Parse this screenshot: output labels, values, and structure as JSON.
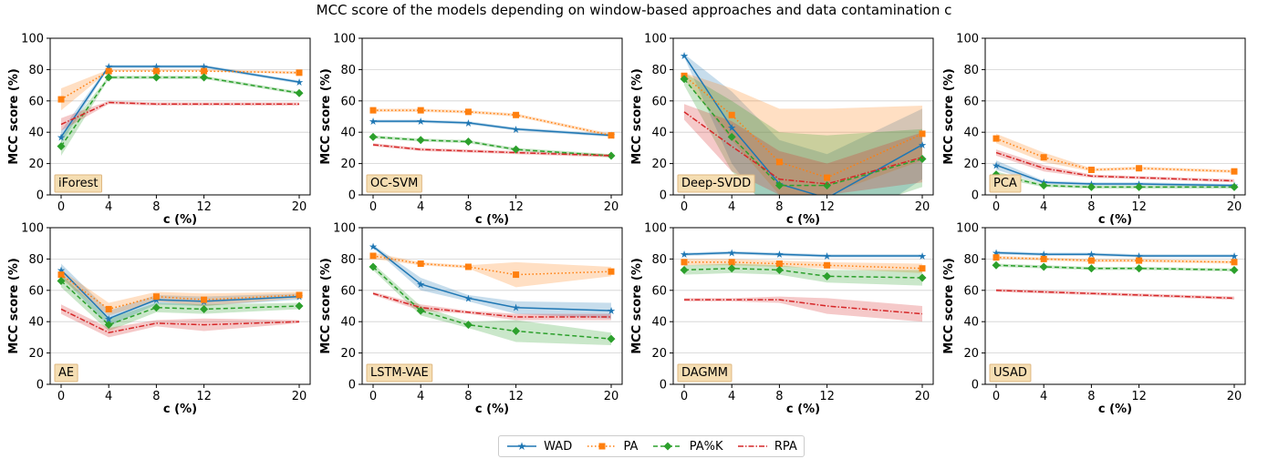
{
  "title": "MCC score of the models depending on window-based approaches and data contamination c",
  "colors": {
    "WAD": "#1f77b4",
    "PA": "#ff7f0e",
    "PA%K": "#2ca02c",
    "RPA": "#d62728",
    "label_bg": "#f5deb3",
    "label_border": "#e0b882"
  },
  "legend": {
    "entries": [
      "WAD",
      "PA",
      "PA%K",
      "RPA"
    ]
  },
  "chart_data": [
    {
      "type": "line",
      "title": "iForest",
      "xlabel": "c (%)",
      "ylabel": "MCC score (%)",
      "ylim": [
        0,
        100
      ],
      "x": [
        0,
        4,
        8,
        12,
        20
      ],
      "yticks": [
        0,
        20,
        40,
        60,
        80,
        100
      ],
      "grid": true,
      "series": [
        {
          "name": "WAD",
          "values": [
            37,
            82,
            82,
            82,
            72
          ],
          "lower": [
            33,
            81,
            81,
            81,
            71
          ],
          "upper": [
            41,
            83,
            83,
            83,
            73
          ]
        },
        {
          "name": "PA",
          "values": [
            61,
            79,
            79,
            79,
            78
          ],
          "lower": [
            54,
            79,
            79,
            79,
            77
          ],
          "upper": [
            68,
            80,
            80,
            80,
            79
          ]
        },
        {
          "name": "PA%K",
          "values": [
            31,
            75,
            75,
            75,
            65
          ],
          "lower": [
            25,
            74,
            74,
            74,
            64
          ],
          "upper": [
            37,
            76,
            76,
            76,
            66
          ]
        },
        {
          "name": "RPA",
          "values": [
            45,
            59,
            58,
            58,
            58
          ],
          "lower": [
            41,
            58,
            57,
            57,
            57
          ],
          "upper": [
            49,
            60,
            59,
            59,
            59
          ]
        }
      ]
    },
    {
      "type": "line",
      "title": "OC-SVM",
      "xlabel": "c (%)",
      "ylabel": "MCC score (%)",
      "ylim": [
        0,
        100
      ],
      "x": [
        0,
        4,
        8,
        12,
        20
      ],
      "yticks": [
        0,
        20,
        40,
        60,
        80,
        100
      ],
      "grid": true,
      "series": [
        {
          "name": "WAD",
          "values": [
            47,
            47,
            46,
            42,
            38
          ],
          "lower": [
            46,
            46,
            45,
            41,
            37
          ],
          "upper": [
            48,
            48,
            47,
            43,
            39
          ]
        },
        {
          "name": "PA",
          "values": [
            54,
            54,
            53,
            51,
            38
          ],
          "lower": [
            53,
            53,
            52,
            50,
            37
          ],
          "upper": [
            55,
            55,
            54,
            52,
            39
          ]
        },
        {
          "name": "PA%K",
          "values": [
            37,
            35,
            34,
            29,
            25
          ],
          "lower": [
            36,
            34,
            33,
            28,
            24
          ],
          "upper": [
            38,
            36,
            35,
            30,
            26
          ]
        },
        {
          "name": "RPA",
          "values": [
            32,
            29,
            28,
            27,
            25
          ],
          "lower": [
            31,
            28,
            27,
            26,
            24
          ],
          "upper": [
            33,
            30,
            29,
            28,
            26
          ]
        }
      ]
    },
    {
      "type": "line",
      "title": "Deep-SVDD",
      "xlabel": "c (%)",
      "ylabel": "MCC score (%)",
      "ylim": [
        0,
        100
      ],
      "x": [
        0,
        4,
        8,
        12,
        20
      ],
      "yticks": [
        0,
        20,
        40,
        60,
        80,
        100
      ],
      "grid": true,
      "series": [
        {
          "name": "WAD",
          "values": [
            89,
            43,
            7,
            -2,
            32
          ],
          "lower": [
            88,
            20,
            -20,
            -30,
            10
          ],
          "upper": [
            90,
            66,
            35,
            26,
            55
          ]
        },
        {
          "name": "PA",
          "values": [
            76,
            51,
            21,
            11,
            39
          ],
          "lower": [
            74,
            35,
            0,
            0,
            22
          ],
          "upper": [
            78,
            68,
            55,
            55,
            57
          ]
        },
        {
          "name": "PA%K",
          "values": [
            74,
            37,
            6,
            6,
            23
          ],
          "lower": [
            70,
            15,
            -15,
            -15,
            5
          ],
          "upper": [
            78,
            60,
            40,
            38,
            42
          ]
        },
        {
          "name": "RPA",
          "values": [
            53,
            31,
            10,
            7,
            24
          ],
          "lower": [
            48,
            15,
            0,
            0,
            8
          ],
          "upper": [
            58,
            47,
            28,
            20,
            40
          ]
        }
      ]
    },
    {
      "type": "line",
      "title": "PCA",
      "xlabel": "c (%)",
      "ylabel": "MCC score (%)",
      "ylim": [
        0,
        100
      ],
      "x": [
        0,
        4,
        8,
        12,
        20
      ],
      "yticks": [
        0,
        20,
        40,
        60,
        80,
        100
      ],
      "grid": true,
      "series": [
        {
          "name": "WAD",
          "values": [
            19,
            8,
            7,
            7,
            6
          ],
          "lower": [
            16,
            7,
            6,
            6,
            5
          ],
          "upper": [
            22,
            9,
            8,
            8,
            7
          ]
        },
        {
          "name": "PA",
          "values": [
            36,
            24,
            16,
            17,
            15
          ],
          "lower": [
            33,
            21,
            15,
            16,
            14
          ],
          "upper": [
            39,
            27,
            17,
            18,
            16
          ]
        },
        {
          "name": "PA%K",
          "values": [
            13,
            6,
            5,
            5,
            5
          ],
          "lower": [
            11,
            5,
            4,
            4,
            4
          ],
          "upper": [
            15,
            7,
            6,
            6,
            6
          ]
        },
        {
          "name": "RPA",
          "values": [
            27,
            17,
            12,
            11,
            9
          ],
          "lower": [
            25,
            15,
            11,
            10,
            8
          ],
          "upper": [
            29,
            19,
            13,
            12,
            10
          ]
        }
      ]
    },
    {
      "type": "line",
      "title": "AE",
      "xlabel": "c (%)",
      "ylabel": "MCC score (%)",
      "ylim": [
        0,
        100
      ],
      "x": [
        0,
        4,
        8,
        12,
        20
      ],
      "yticks": [
        0,
        20,
        40,
        60,
        80,
        100
      ],
      "grid": true,
      "series": [
        {
          "name": "WAD",
          "values": [
            73,
            42,
            54,
            53,
            56
          ],
          "lower": [
            69,
            37,
            51,
            50,
            54
          ],
          "upper": [
            77,
            47,
            57,
            56,
            58
          ]
        },
        {
          "name": "PA",
          "values": [
            70,
            48,
            56,
            54,
            57
          ],
          "lower": [
            67,
            44,
            53,
            50,
            55
          ],
          "upper": [
            73,
            52,
            59,
            58,
            59
          ]
        },
        {
          "name": "PA%K",
          "values": [
            66,
            38,
            49,
            48,
            50
          ],
          "lower": [
            62,
            34,
            46,
            45,
            48
          ],
          "upper": [
            70,
            42,
            52,
            51,
            52
          ]
        },
        {
          "name": "RPA",
          "values": [
            48,
            33,
            39,
            38,
            40
          ],
          "lower": [
            45,
            30,
            37,
            34,
            39
          ],
          "upper": [
            51,
            36,
            41,
            42,
            41
          ]
        }
      ]
    },
    {
      "type": "line",
      "title": "LSTM-VAE",
      "xlabel": "c (%)",
      "ylabel": "MCC score (%)",
      "ylim": [
        0,
        100
      ],
      "x": [
        0,
        4,
        8,
        12,
        20
      ],
      "yticks": [
        0,
        20,
        40,
        60,
        80,
        100
      ],
      "grid": true,
      "series": [
        {
          "name": "WAD",
          "values": [
            88,
            64,
            55,
            49,
            47
          ],
          "lower": [
            87,
            60,
            53,
            45,
            42
          ],
          "upper": [
            89,
            68,
            57,
            53,
            52
          ]
        },
        {
          "name": "PA",
          "values": [
            82,
            77,
            75,
            70,
            72
          ],
          "lower": [
            80,
            76,
            74,
            62,
            69
          ],
          "upper": [
            84,
            78,
            76,
            78,
            75
          ]
        },
        {
          "name": "PA%K",
          "values": [
            75,
            47,
            38,
            34,
            29
          ],
          "lower": [
            73,
            44,
            36,
            27,
            25
          ],
          "upper": [
            77,
            50,
            40,
            41,
            33
          ]
        },
        {
          "name": "RPA",
          "values": [
            58,
            49,
            46,
            43,
            43
          ],
          "lower": [
            57,
            47,
            45,
            41,
            41
          ],
          "upper": [
            59,
            51,
            47,
            45,
            45
          ]
        }
      ]
    },
    {
      "type": "line",
      "title": "DAGMM",
      "xlabel": "c (%)",
      "ylabel": "MCC score (%)",
      "ylim": [
        0,
        100
      ],
      "x": [
        0,
        4,
        8,
        12,
        20
      ],
      "yticks": [
        0,
        20,
        40,
        60,
        80,
        100
      ],
      "grid": true,
      "series": [
        {
          "name": "WAD",
          "values": [
            83,
            84,
            83,
            82,
            82
          ],
          "lower": [
            82,
            83,
            82,
            81,
            81
          ],
          "upper": [
            84,
            85,
            84,
            83,
            83
          ]
        },
        {
          "name": "PA",
          "values": [
            78,
            78,
            77,
            76,
            74
          ],
          "lower": [
            76,
            76,
            75,
            74,
            71
          ],
          "upper": [
            80,
            80,
            79,
            78,
            77
          ]
        },
        {
          "name": "PA%K",
          "values": [
            73,
            74,
            73,
            69,
            68
          ],
          "lower": [
            70,
            71,
            70,
            65,
            63
          ],
          "upper": [
            76,
            77,
            76,
            73,
            73
          ]
        },
        {
          "name": "RPA",
          "values": [
            54,
            54,
            54,
            50,
            45
          ],
          "lower": [
            53,
            53,
            52,
            45,
            40
          ],
          "upper": [
            55,
            55,
            56,
            55,
            50
          ]
        }
      ]
    },
    {
      "type": "line",
      "title": "USAD",
      "xlabel": "c (%)",
      "ylabel": "MCC score (%)",
      "ylim": [
        0,
        100
      ],
      "x": [
        0,
        4,
        8,
        12,
        20
      ],
      "yticks": [
        0,
        20,
        40,
        60,
        80,
        100
      ],
      "grid": true,
      "series": [
        {
          "name": "WAD",
          "values": [
            84,
            83,
            83,
            82,
            82
          ],
          "lower": [
            83,
            82,
            82,
            81,
            81
          ],
          "upper": [
            85,
            84,
            84,
            83,
            83
          ]
        },
        {
          "name": "PA",
          "values": [
            81,
            80,
            79,
            79,
            78
          ],
          "lower": [
            80,
            79,
            78,
            78,
            77
          ],
          "upper": [
            82,
            81,
            80,
            80,
            79
          ]
        },
        {
          "name": "PA%K",
          "values": [
            76,
            75,
            74,
            74,
            73
          ],
          "lower": [
            75,
            74,
            73,
            73,
            72
          ],
          "upper": [
            77,
            76,
            75,
            75,
            74
          ]
        },
        {
          "name": "RPA",
          "values": [
            60,
            59,
            58,
            57,
            55
          ],
          "lower": [
            59,
            58,
            57,
            56,
            54
          ],
          "upper": [
            61,
            60,
            59,
            58,
            56
          ]
        }
      ]
    }
  ]
}
